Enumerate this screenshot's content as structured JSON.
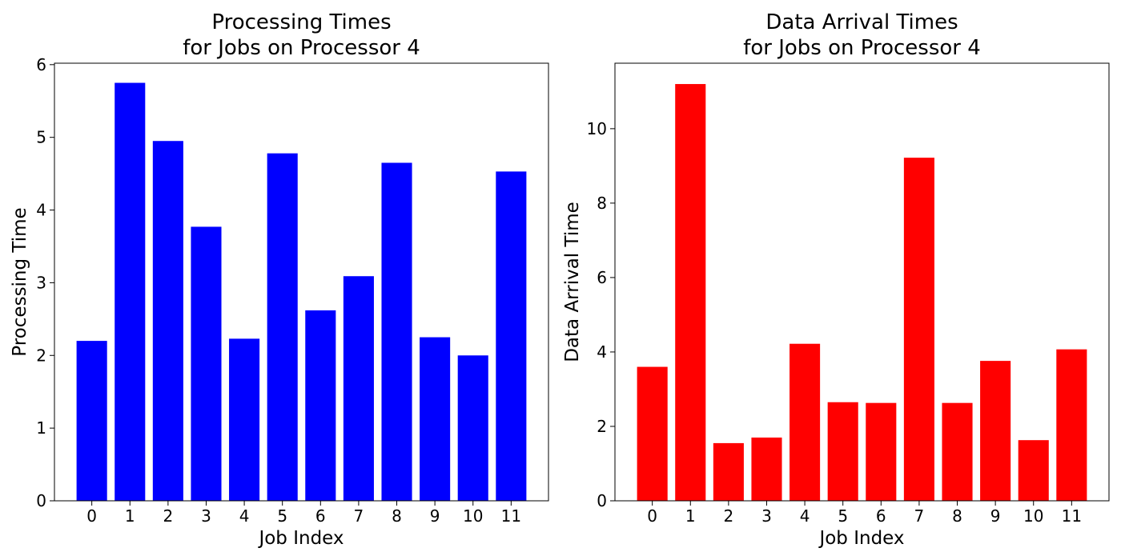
{
  "chart_data": [
    {
      "type": "bar",
      "title": "Processing Times\nfor Jobs on Processor 4",
      "xlabel": "Job Index",
      "ylabel": "Processing Time",
      "categories": [
        "0",
        "1",
        "2",
        "3",
        "4",
        "5",
        "6",
        "7",
        "8",
        "9",
        "10",
        "11"
      ],
      "values": [
        2.2,
        5.75,
        4.95,
        3.77,
        2.23,
        4.78,
        2.62,
        3.09,
        4.65,
        2.25,
        2.0,
        4.53
      ],
      "color": "#0000ff",
      "ylim": [
        0,
        6.02
      ],
      "yticks": [
        0,
        1,
        2,
        3,
        4,
        5,
        6
      ],
      "grid": false,
      "legend": "none"
    },
    {
      "type": "bar",
      "title": "Data Arrival Times\nfor Jobs on Processor 4",
      "xlabel": "Job Index",
      "ylabel": "Data Arrival Time",
      "categories": [
        "0",
        "1",
        "2",
        "3",
        "4",
        "5",
        "6",
        "7",
        "8",
        "9",
        "10",
        "11"
      ],
      "values": [
        3.6,
        11.2,
        1.55,
        1.7,
        4.22,
        2.65,
        2.63,
        9.22,
        2.63,
        3.76,
        1.63,
        4.07
      ],
      "color": "#ff0000",
      "ylim": [
        0,
        11.76
      ],
      "yticks": [
        0,
        2,
        4,
        6,
        8,
        10
      ],
      "grid": false,
      "legend": "none"
    }
  ]
}
